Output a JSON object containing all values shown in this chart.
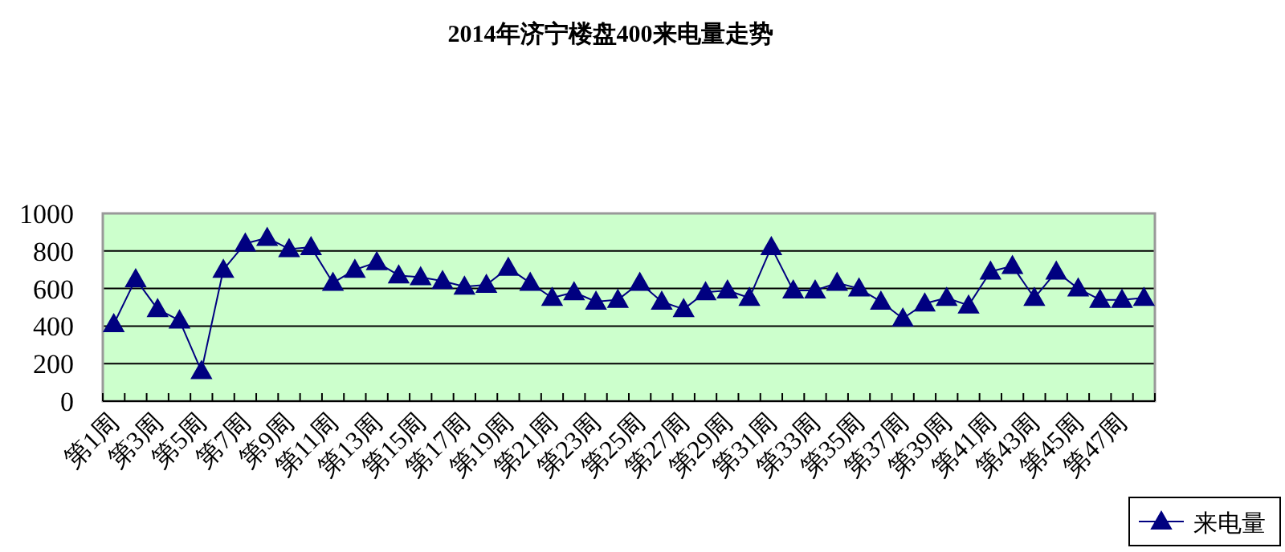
{
  "chart_data": {
    "type": "line",
    "title": "2014年济宁楼盘400来电量走势",
    "categories": [
      "第1周",
      null,
      "第3周",
      null,
      "第5周",
      null,
      "第7周",
      null,
      "第9周",
      null,
      "第11周",
      null,
      "第13周",
      null,
      "第15周",
      null,
      "第17周",
      null,
      "第19周",
      null,
      "第21周",
      null,
      "第23周",
      null,
      "第25周",
      null,
      "第27周",
      null,
      "第29周",
      null,
      "第31周",
      null,
      "第33周",
      null,
      "第35周",
      null,
      "第37周",
      null,
      "第39周",
      null,
      "第41周",
      null,
      "第43周",
      null,
      "第45周",
      null,
      "第47周",
      null
    ],
    "series": [
      {
        "name": "来电量",
        "color": "#000080",
        "values": [
          410,
          650,
          490,
          430,
          160,
          700,
          840,
          870,
          810,
          820,
          630,
          700,
          740,
          670,
          660,
          640,
          610,
          620,
          710,
          630,
          550,
          580,
          530,
          540,
          630,
          530,
          490,
          580,
          590,
          550,
          820,
          590,
          590,
          630,
          600,
          530,
          440,
          520,
          550,
          510,
          690,
          720,
          550,
          690,
          600,
          540,
          540,
          550
        ]
      }
    ],
    "ylim": [
      0,
      1000
    ],
    "yticks": [
      0,
      200,
      400,
      600,
      800,
      1000
    ],
    "grid": "y",
    "legend": "bottom right",
    "marker": "triangle",
    "line_style": "solid"
  }
}
